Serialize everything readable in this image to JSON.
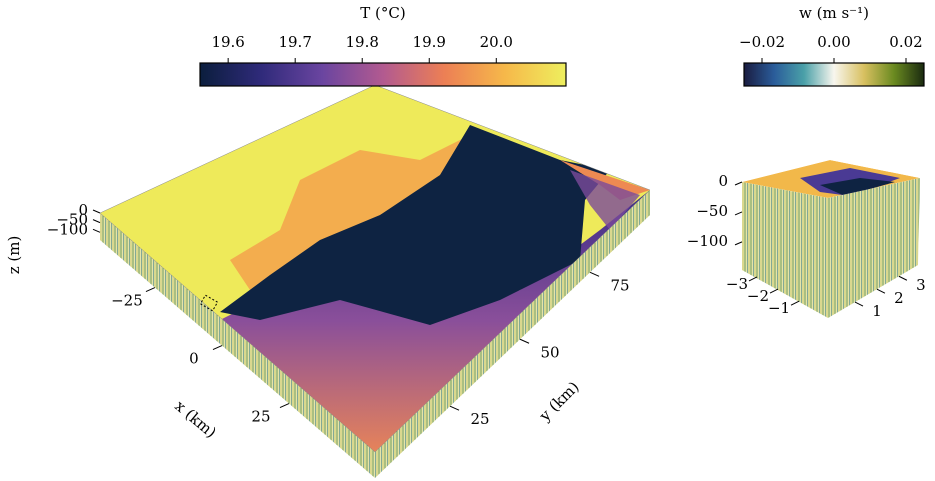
{
  "colorbars": [
    {
      "label": "T (°C)",
      "lim": [
        19.558,
        20.104
      ],
      "ticks": [
        19.6,
        19.7,
        19.8,
        19.9,
        {
          "value": 20.0,
          "label": "20.0"
        }
      ],
      "colors": [
        "#0b1e3d",
        "#2f2a7a",
        "#6a45a0",
        "#b25a90",
        "#ec7f55",
        "#f6b84a",
        "#eeef5e"
      ]
    },
    {
      "label": "w (m s⁻¹)",
      "lim": [
        -0.025,
        0.025
      ],
      "ticks": [
        {
          "value": -0.02,
          "label": "−0.02"
        },
        {
          "value": 0.0,
          "label": "0.00"
        },
        0.02
      ],
      "colors": [
        "#1a1c40",
        "#2a5c9a",
        "#4aa0a8",
        "#f8f6ee",
        "#d8c060",
        "#6a8a20",
        "#1a2a10"
      ]
    }
  ],
  "main_box": {
    "x_label": "x (km)",
    "y_label": "y (km)",
    "z_label": "z (m)",
    "xlim": [
      -45.5,
      57.1
    ],
    "xticks": [
      {
        "value": -25,
        "label": "−25"
      },
      0,
      25
    ],
    "ylim": [
      -1.8,
      96.4
    ],
    "yticks": [
      25,
      50,
      75
    ],
    "zlim": [
      0,
      -140
    ],
    "zticks": [
      0,
      {
        "value": -50,
        "label": "−50"
      },
      {
        "value": -100,
        "label": "−100"
      }
    ]
  },
  "inset_box": {
    "xlim": [
      -3.57,
      0.38
    ],
    "xticks": [
      {
        "value": -3,
        "label": "−3"
      },
      {
        "value": -2,
        "label": "−2"
      },
      {
        "value": -1,
        "label": "−1"
      }
    ],
    "ylim": [
      -0.23,
      3.87
    ],
    "yticks": [
      1,
      2,
      3
    ],
    "zlim": [
      0,
      -147
    ],
    "zticks": [
      0,
      {
        "value": -50,
        "label": "−50"
      },
      {
        "value": -100,
        "label": "−100"
      }
    ]
  }
}
